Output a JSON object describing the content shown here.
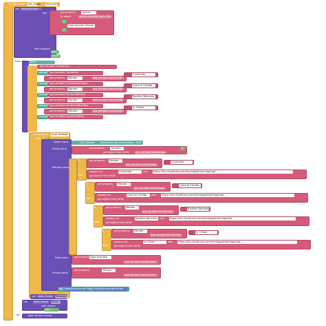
{
  "workspace": {
    "proc1": {
      "header": "to call more",
      "init_label": "initialize local",
      "local_name": "list_Adapt",
      "to_label": "to",
      "list_value": "text items",
      "call_label": "call",
      "call_target": "MyWebAdapter1",
      "method": "Url",
      "key_label": "key",
      "get_property": "get property",
      "property_name": "Activa",
      "of_object": "of object",
      "stored_variable": "stored variable Login_Info",
      "list_item_a": "0",
      "list_item_b": "0",
      "list_label": "Lista Sección Cliente",
      "with_outputs": "with outputs",
      "out_a": "text",
      "out_b": "result"
    },
    "proc2": {
      "then_do": "then do",
      "init_label": "initialize local",
      "local_name": "item",
      "to_label": "to",
      "for_each_label": "for each item in list",
      "set_var": "app variable Contenido",
      "set_label": "set",
      "change_label": "change",
      "get_property": "get property",
      "of_object": "of object",
      "get_object_from_json": "get object from JSON",
      "global_var": "app variable JsonVariable",
      "rows": [
        {
          "var": "app variable Contenido",
          "key": "Contenido",
          "val": "Contenido",
          "prop": "Metodo"
        },
        {
          "var": "app variable ContenidoCalidad",
          "key": "Calidad",
          "val": "Carta di Credito",
          "prop": "Metodo"
        },
        {
          "var": "app variable ContenidoCarta",
          "key": "Carta",
          "val": "Bonifico Bancario",
          "prop": "Metodo"
        },
        {
          "var": "app variable ContenidoBonifico",
          "key": "Bonifico",
          "val": "In 3 Rate",
          "prop": "Metodo"
        },
        {
          "var": "app variable ContenidoRate",
          "key": "Rate",
          "val": "",
          "prop": ""
        }
      ]
    },
    "proc3": {
      "create_list": "create list in",
      "list_name": "local-Dataset",
      "label_list": "List",
      "list_value": "1",
      "items": [
        "List_Metodo",
        "text items",
        "get and remove",
        "first"
      ],
      "field_labels": {
        "nome": "Nome value",
        "saldo": "Saldo value",
        "metodo": "Metodo value",
        "data": "Data value",
        "prezzo": "Prezzo value"
      },
      "saldo_prop": "Saldato",
      "saldo_num": "0",
      "if_label": "if",
      "then_label": "then",
      "else_label": "else",
      "do_label": "do",
      "compare_label": "equal to",
      "metodo_rows": [
        {
          "prop": "Metodo",
          "val": "Contenido",
          "replace": "Contenido"
        },
        {
          "prop": "Metodo",
          "val": "Carta di Credito",
          "replace": "Carta di Credito"
        },
        {
          "prop": "Metodo",
          "val": "Bonifico Bancario",
          "replace": "Bonifico Bancario"
        },
        {
          "prop": "Metodo",
          "val": "In 3 Rate",
          "replace": "In 3 Rate"
        }
      ],
      "replace_all": "replace all",
      "with_label": "with",
      "url": "https://res.cloudinary.com/mymagazine/image/upl...",
      "data_prop": "Data Acquisto",
      "prezzo_prop": "Prezzo"
    },
    "proc4": {
      "set_label": "set",
      "target": "ListaDatiGeneratiVirtuali",
      "to_label": "to",
      "value": "ListaDatiGeneratiVirtuali"
    },
    "proc5": {
      "call_label": "call",
      "alert_1": "Alert_Errore",
      "method_1": "Message",
      "alert_2": "Alert_Errore",
      "method_2": "Show",
      "with_output": "with output",
      "output_val": "text",
      "do_label": "do",
      "tail": "Open Screen Nuova",
      "on_label": "on",
      "when_label": "when",
      "error_label": "Error"
    }
  },
  "colors": {
    "event_orange": "#f0b74a",
    "procedure_purple": "#6a4fb5",
    "text_pink": "#d65b7a",
    "math_green": "#6fbf6f",
    "variable_teal": "#5cb2a8",
    "logic_blue": "#5b80c8"
  }
}
